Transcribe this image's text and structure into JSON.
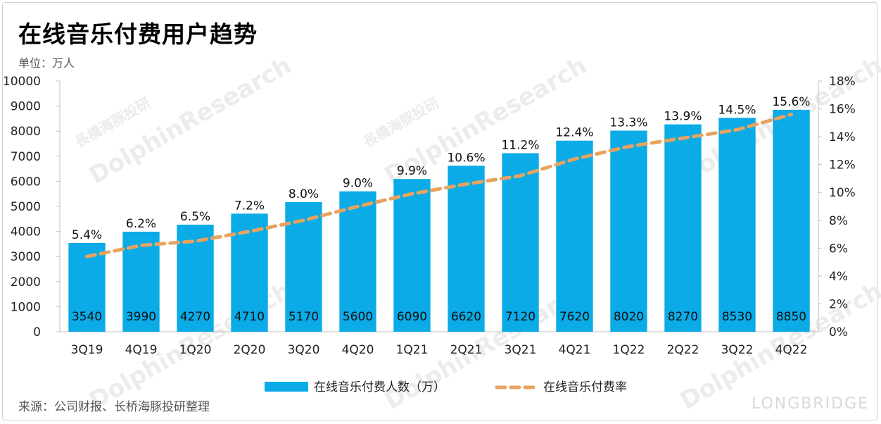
{
  "title": "在线音乐付费用户趋势",
  "unit_label": "单位：万人",
  "source": "来源：公司财报、长桥海豚投研整理",
  "watermark": {
    "name": "DolphinResearch",
    "cn": "長橋海豚投研",
    "en": "LONGBRIDGE"
  },
  "brand": "LONGBRIDGE",
  "colors": {
    "bar": "#0aabe7",
    "line": "#e8a35f"
  },
  "chart_data": {
    "type": "bar",
    "categories": [
      "3Q19",
      "4Q19",
      "1Q20",
      "2Q20",
      "3Q20",
      "4Q20",
      "1Q21",
      "2Q21",
      "3Q21",
      "4Q21",
      "1Q22",
      "2Q22",
      "3Q22",
      "4Q22"
    ],
    "series": [
      {
        "name": "在线音乐付费人数（万）",
        "type": "bar",
        "axis": "left",
        "values": [
          3540,
          3990,
          4270,
          4710,
          5170,
          5600,
          6090,
          6620,
          7120,
          7620,
          8020,
          8270,
          8530,
          8850
        ]
      },
      {
        "name": "在线音乐付费率",
        "type": "line",
        "axis": "right",
        "style": "dashed",
        "values": [
          5.4,
          6.2,
          6.5,
          7.2,
          8.0,
          9.0,
          9.9,
          10.6,
          11.2,
          12.4,
          13.3,
          13.9,
          14.5,
          15.6
        ],
        "labels": [
          "5.4%",
          "6.2%",
          "6.5%",
          "7.2%",
          "8.0%",
          "9.0%",
          "9.9%",
          "10.6%",
          "11.2%",
          "12.4%",
          "13.3%",
          "13.9%",
          "14.5%",
          "15.6%"
        ]
      }
    ],
    "ylim": [
      0,
      10000
    ],
    "y_ticks": [
      "0",
      "1000",
      "2000",
      "3000",
      "4000",
      "5000",
      "6000",
      "7000",
      "8000",
      "9000",
      "10000"
    ],
    "y2lim": [
      0,
      18
    ],
    "y2_ticks": [
      "0%",
      "2%",
      "4%",
      "6%",
      "8%",
      "10%",
      "12%",
      "14%",
      "16%",
      "18%"
    ],
    "grid": false,
    "legend_position": "bottom"
  }
}
